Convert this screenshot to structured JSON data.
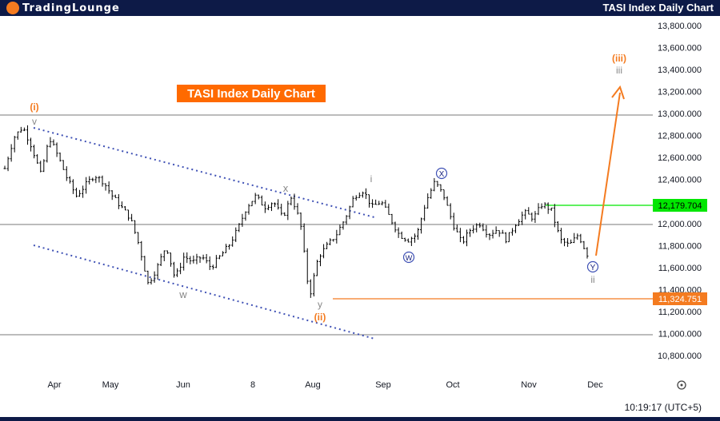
{
  "header": {
    "logo_text": "TradingLounge",
    "title": "TASI Index Daily Chart"
  },
  "chart_data": {
    "type": "candlestick",
    "title": "TASI Index Daily Chart",
    "y_ticks": [
      "13,800.000",
      "13,600.000",
      "13,400.000",
      "13,200.000",
      "13,000.000",
      "12,800.000",
      "12,600.000",
      "12,400.000",
      "12,200.000",
      "12,000.000",
      "11,800.000",
      "11,600.000",
      "11,400.000",
      "11,200.000",
      "11,000.000",
      "10,800.000"
    ],
    "ylim": [
      10700,
      13850
    ],
    "x_ticks": [
      "Apr",
      "May",
      "Jun",
      "8",
      "Aug",
      "Sep",
      "Oct",
      "Nov",
      "Dec"
    ],
    "horizontal_lines": [
      13000,
      12000,
      11000
    ],
    "levels": [
      {
        "label": "12,179.704",
        "value": 12179.704,
        "color": "#00e600"
      },
      {
        "label": "11,324.751",
        "value": 11324.751,
        "color": "#f47b20"
      }
    ],
    "wave_labels": [
      {
        "text": "(i)",
        "color": "#f47b20"
      },
      {
        "text": "v",
        "color": "#888888"
      },
      {
        "text": "x",
        "color": "#888888"
      },
      {
        "text": "w",
        "color": "#888888"
      },
      {
        "text": "y",
        "color": "#888888"
      },
      {
        "text": "(ii)",
        "color": "#f47b20"
      },
      {
        "text": "i",
        "color": "#888888"
      },
      {
        "text": "X",
        "color": "#1a237e"
      },
      {
        "text": "W",
        "color": "#1a237e"
      },
      {
        "text": "Y",
        "color": "#1a237e"
      },
      {
        "text": "ii",
        "color": "#888888"
      },
      {
        "text": "(iii)",
        "color": "#f47b20"
      },
      {
        "text": "iii",
        "color": "#888888"
      }
    ],
    "time_label": "10:19:17 (UTC+5)",
    "price_path": [
      12500,
      12780,
      12880,
      12700,
      12450,
      12780,
      12600,
      12400,
      12250,
      12350,
      12440,
      12380,
      12250,
      12150,
      12050,
      11800,
      11450,
      11600,
      11800,
      11500,
      11700,
      11650,
      11700,
      11600,
      11700,
      11800,
      11950,
      12150,
      12250,
      12150,
      12200,
      12050,
      12250,
      12000,
      11330,
      11700,
      11800,
      11900,
      12050,
      12250,
      12300,
      12150,
      12200,
      12050,
      11900,
      11850,
      11900,
      12200,
      12380,
      12250,
      12000,
      11820,
      11950,
      12000,
      11900,
      11950,
      11850,
      12000,
      12100,
      12050,
      12180,
      12120,
      11850,
      11800,
      11900,
      11720
    ]
  }
}
